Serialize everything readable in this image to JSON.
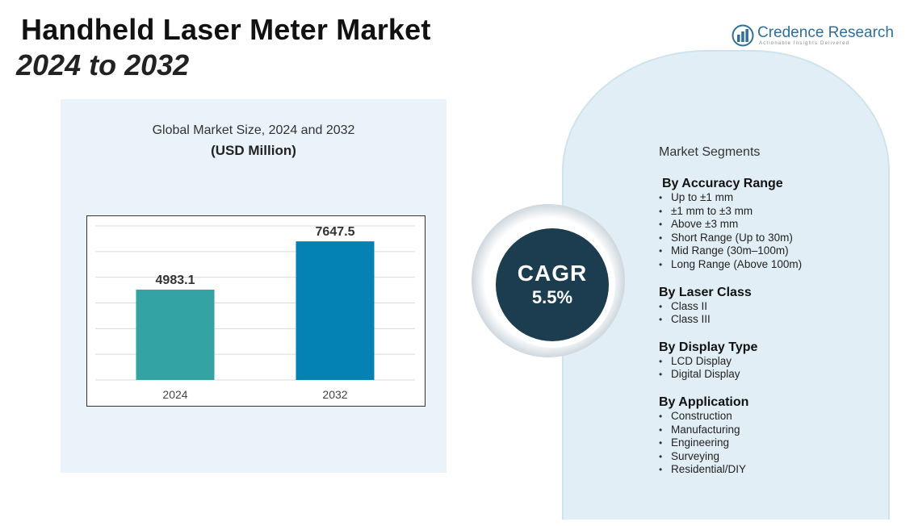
{
  "header": {
    "title_line1": "Handheld Laser Meter Market",
    "title_line2": "2024 to 2032"
  },
  "logo": {
    "name_part1": "Credence ",
    "name_part2": "Research",
    "tagline": "Actionable Insights Delivered",
    "icon": "bar-chart-logo-icon"
  },
  "chart_panel": {
    "title": "Global Market Size, 2024 and 2032",
    "unit": "(USD Million)"
  },
  "chart_data": {
    "type": "bar",
    "categories": [
      "2024",
      "2032"
    ],
    "values": [
      4983.1,
      7647.5
    ],
    "value_labels": [
      "4983.1",
      "7647.5"
    ],
    "colors": [
      "#33a3a3",
      "#0582b4"
    ],
    "title": "Global Market Size, 2024 and 2032",
    "ylabel": "(USD Million)",
    "ylim": [
      0,
      8500
    ],
    "grid": true,
    "legend": "none"
  },
  "cagr": {
    "label": "CAGR",
    "value": "5.5%"
  },
  "segments": {
    "heading": "Market Segments",
    "groups": [
      {
        "title": "By Accuracy Range",
        "items": [
          "Up to ±1 mm",
          "±1 mm to ±3 mm",
          "Above ±3 mm",
          "Short Range (Up to 30m)",
          "Mid Range (30m–100m)",
          "Long Range (Above 100m)"
        ]
      },
      {
        "title": "By Laser Class",
        "items": [
          "Class II",
          "Class III"
        ]
      },
      {
        "title": "By Display Type",
        "items": [
          "LCD Display",
          "Digital Display"
        ]
      },
      {
        "title": "By Application",
        "items": [
          "Construction",
          "Manufacturing",
          "Engineering",
          "Surveying",
          "Residential/DIY"
        ]
      }
    ]
  },
  "colors": {
    "panel_bg": "#eaf3f9",
    "segments_bg": "#e1eef6",
    "cagr_bg": "#1c3d4f",
    "brand": "#2f6f9a"
  }
}
